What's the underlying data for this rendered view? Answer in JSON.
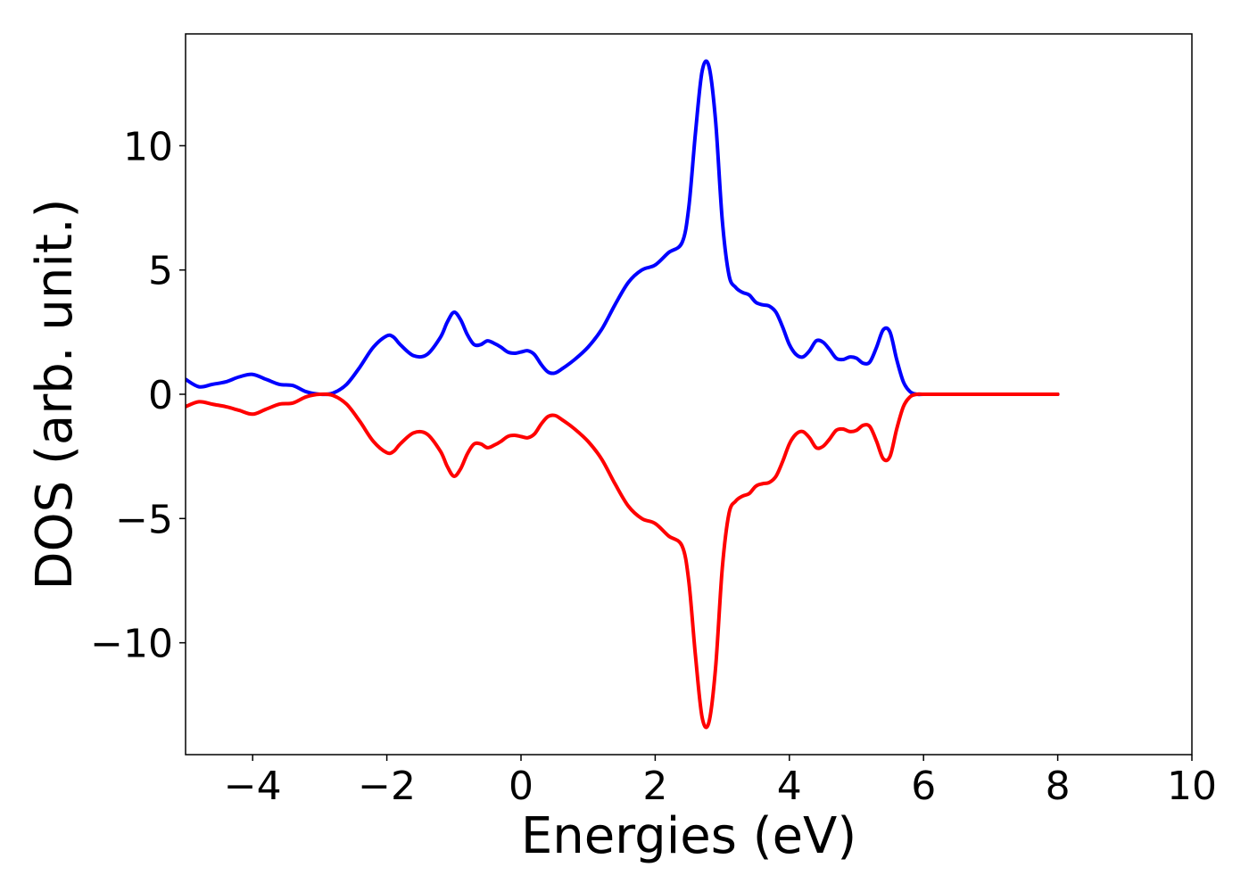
{
  "chart_data": {
    "type": "line",
    "title": "",
    "xlabel": "Energies (eV)",
    "ylabel": "DOS (arb. unit.)",
    "xlim": [
      -5,
      10
    ],
    "ylim": [
      -14.5,
      14.5
    ],
    "xticks": [
      -4,
      -2,
      0,
      2,
      4,
      6,
      8,
      10
    ],
    "xtick_labels": [
      "−4",
      "−2",
      "0",
      "2",
      "4",
      "6",
      "8",
      "10"
    ],
    "yticks": [
      -10,
      -5,
      0,
      5,
      10
    ],
    "ytick_labels": [
      "−10",
      "−5",
      "0",
      "5",
      "10"
    ],
    "grid": false,
    "legend": "none",
    "series": [
      {
        "color": "#0000ff",
        "x": [
          -5.0,
          -4.8,
          -4.6,
          -4.4,
          -4.2,
          -4.0,
          -3.8,
          -3.6,
          -3.4,
          -3.2,
          -3.0,
          -2.8,
          -2.6,
          -2.4,
          -2.2,
          -2.0,
          -1.9,
          -1.8,
          -1.6,
          -1.4,
          -1.2,
          -1.1,
          -1.0,
          -0.9,
          -0.8,
          -0.7,
          -0.6,
          -0.5,
          -0.4,
          -0.3,
          -0.2,
          -0.1,
          0.0,
          0.1,
          0.2,
          0.3,
          0.4,
          0.5,
          0.6,
          0.8,
          1.0,
          1.2,
          1.4,
          1.6,
          1.8,
          2.0,
          2.2,
          2.4,
          2.5,
          2.6,
          2.7,
          2.8,
          2.9,
          3.0,
          3.1,
          3.2,
          3.3,
          3.4,
          3.5,
          3.6,
          3.7,
          3.8,
          3.9,
          4.0,
          4.1,
          4.2,
          4.3,
          4.4,
          4.5,
          4.6,
          4.7,
          4.8,
          4.9,
          5.0,
          5.1,
          5.2,
          5.3,
          5.4,
          5.5,
          5.6,
          5.7,
          5.8,
          5.9,
          6.0,
          6.2,
          6.5,
          7.0,
          7.5,
          8.0
        ],
        "y": [
          0.6,
          0.3,
          0.4,
          0.5,
          0.7,
          0.8,
          0.6,
          0.4,
          0.35,
          0.1,
          0.0,
          0.05,
          0.4,
          1.1,
          1.9,
          2.35,
          2.3,
          2.0,
          1.55,
          1.6,
          2.3,
          2.9,
          3.3,
          3.0,
          2.4,
          2.0,
          2.0,
          2.15,
          2.05,
          1.9,
          1.7,
          1.65,
          1.7,
          1.75,
          1.6,
          1.2,
          0.9,
          0.85,
          1.0,
          1.4,
          1.9,
          2.6,
          3.6,
          4.5,
          5.0,
          5.2,
          5.7,
          6.1,
          7.5,
          10.5,
          13.0,
          13.2,
          11.0,
          7.0,
          4.8,
          4.3,
          4.1,
          4.0,
          3.7,
          3.6,
          3.55,
          3.3,
          2.7,
          2.0,
          1.6,
          1.5,
          1.75,
          2.15,
          2.1,
          1.8,
          1.45,
          1.4,
          1.5,
          1.45,
          1.25,
          1.3,
          1.9,
          2.6,
          2.5,
          1.4,
          0.5,
          0.1,
          0.0,
          0.0,
          0.0,
          0.0,
          0.0,
          0.0,
          0.0
        ]
      },
      {
        "color": "#ff0000",
        "x": [
          -5.0,
          -4.8,
          -4.6,
          -4.4,
          -4.2,
          -4.0,
          -3.8,
          -3.6,
          -3.4,
          -3.2,
          -3.0,
          -2.8,
          -2.6,
          -2.4,
          -2.2,
          -2.0,
          -1.9,
          -1.8,
          -1.6,
          -1.4,
          -1.2,
          -1.1,
          -1.0,
          -0.9,
          -0.8,
          -0.7,
          -0.6,
          -0.5,
          -0.4,
          -0.3,
          -0.2,
          -0.1,
          0.0,
          0.1,
          0.2,
          0.3,
          0.4,
          0.5,
          0.6,
          0.8,
          1.0,
          1.2,
          1.4,
          1.6,
          1.8,
          2.0,
          2.2,
          2.4,
          2.5,
          2.6,
          2.7,
          2.8,
          2.9,
          3.0,
          3.1,
          3.2,
          3.3,
          3.4,
          3.5,
          3.6,
          3.7,
          3.8,
          3.9,
          4.0,
          4.1,
          4.2,
          4.3,
          4.4,
          4.5,
          4.6,
          4.7,
          4.8,
          4.9,
          5.0,
          5.1,
          5.2,
          5.3,
          5.4,
          5.5,
          5.6,
          5.7,
          5.8,
          5.9,
          6.0,
          6.2,
          6.5,
          7.0,
          7.5,
          8.0
        ],
        "y": [
          -0.5,
          -0.3,
          -0.4,
          -0.5,
          -0.65,
          -0.8,
          -0.6,
          -0.4,
          -0.35,
          -0.1,
          0.0,
          -0.05,
          -0.4,
          -1.1,
          -1.9,
          -2.35,
          -2.3,
          -2.0,
          -1.55,
          -1.6,
          -2.3,
          -2.9,
          -3.3,
          -3.0,
          -2.4,
          -2.0,
          -2.0,
          -2.15,
          -2.05,
          -1.9,
          -1.7,
          -1.65,
          -1.7,
          -1.75,
          -1.6,
          -1.2,
          -0.9,
          -0.85,
          -1.0,
          -1.4,
          -1.9,
          -2.6,
          -3.6,
          -4.5,
          -5.0,
          -5.2,
          -5.7,
          -6.1,
          -7.5,
          -10.5,
          -13.0,
          -13.2,
          -11.0,
          -7.0,
          -4.8,
          -4.3,
          -4.1,
          -4.0,
          -3.7,
          -3.6,
          -3.55,
          -3.3,
          -2.7,
          -2.0,
          -1.6,
          -1.5,
          -1.75,
          -2.15,
          -2.1,
          -1.8,
          -1.45,
          -1.4,
          -1.5,
          -1.45,
          -1.25,
          -1.3,
          -1.9,
          -2.6,
          -2.5,
          -1.4,
          -0.5,
          -0.1,
          0.0,
          0.0,
          0.0,
          0.0,
          0.0,
          0.0,
          0.0
        ]
      }
    ]
  }
}
